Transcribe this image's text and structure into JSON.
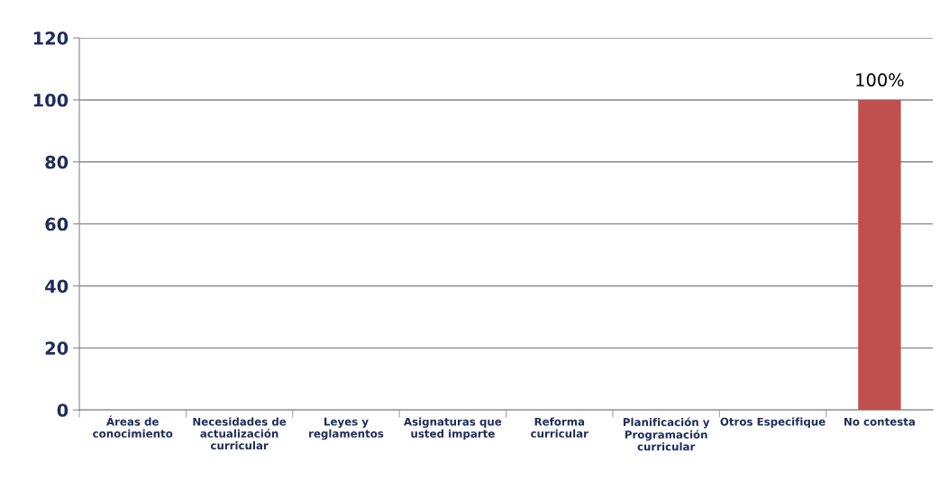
{
  "chart_data": {
    "type": "bar",
    "categories": [
      "Áreas de\nconocimiento",
      "Necesidades de\nactualización\ncurricular",
      "Leyes y\nreglamentos",
      "Asignaturas que\nusted imparte",
      "Reforma\ncurricular",
      "Planificación y\nProgramación\ncurricular",
      "Otros Especifique",
      "No contesta"
    ],
    "values": [
      0,
      0,
      0,
      0,
      0,
      0,
      0,
      100
    ],
    "color": "#c0504d",
    "value_labels": [
      null,
      null,
      null,
      null,
      null,
      null,
      null,
      "100%"
    ],
    "ylim": [
      0,
      120
    ],
    "yticks": [
      0,
      20,
      40,
      60,
      80,
      100,
      120
    ],
    "grid": "y",
    "legend": false
  }
}
